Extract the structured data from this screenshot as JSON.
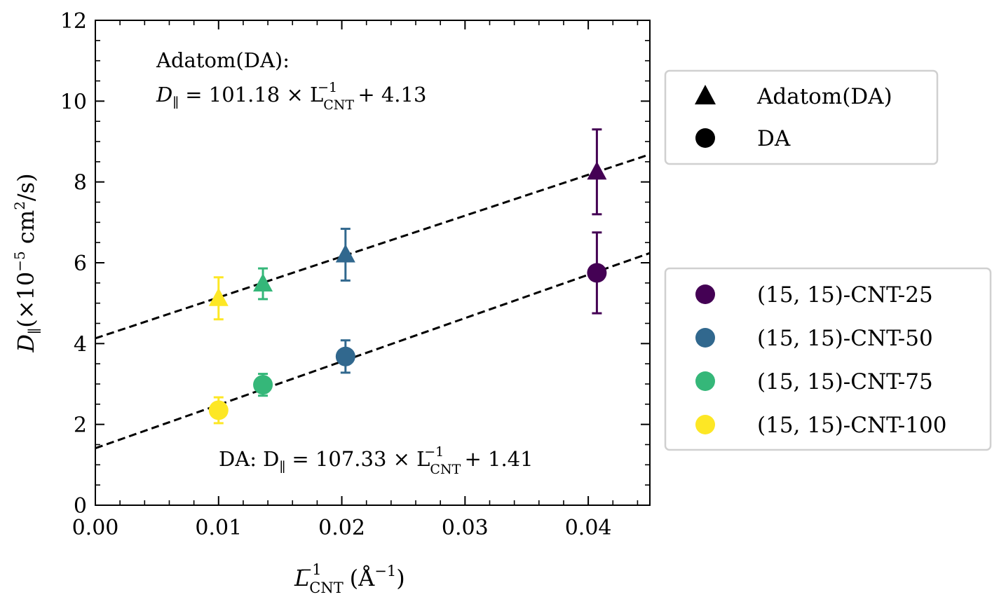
{
  "chart_data": {
    "type": "scatter",
    "title": "",
    "xlabel": {
      "base": "L",
      "sub": "CNT",
      "sup": "−1",
      "unit_open": "(Å",
      "unit_sup": "−1",
      "unit_close": ")"
    },
    "ylabel": {
      "base": "D",
      "sub": "∥",
      "rest": "(×10",
      "sup": "−5",
      "unit": " cm",
      "unit_sup": "2",
      "close": "/s)"
    },
    "xlim": [
      0.0,
      0.045
    ],
    "ylim": [
      0,
      12
    ],
    "xticks": [
      0.0,
      0.01,
      0.02,
      0.03,
      0.04
    ],
    "xtick_labels": [
      "0.00",
      "0.01",
      "0.02",
      "0.03",
      "0.04"
    ],
    "yticks": [
      0,
      2,
      4,
      6,
      8,
      10,
      12
    ],
    "ytick_labels": [
      "0",
      "2",
      "4",
      "6",
      "8",
      "10",
      "12"
    ],
    "grid": false,
    "colors": {
      "cnt25": "#440154",
      "cnt50": "#31688e",
      "cnt75": "#35b779",
      "cnt100": "#fde725",
      "fit": "#000000"
    },
    "series": [
      {
        "marker": "triangle",
        "group": "Adatom(DA)",
        "points": [
          {
            "x": 0.01,
            "y": 5.12,
            "err": 0.52,
            "color_key": "cnt100"
          },
          {
            "x": 0.0136,
            "y": 5.48,
            "err": 0.38,
            "color_key": "cnt75"
          },
          {
            "x": 0.0203,
            "y": 6.2,
            "err": 0.64,
            "color_key": "cnt50"
          },
          {
            "x": 0.0407,
            "y": 8.25,
            "err": 1.05,
            "color_key": "cnt25"
          }
        ]
      },
      {
        "marker": "circle",
        "group": "DA",
        "points": [
          {
            "x": 0.01,
            "y": 2.35,
            "err": 0.32,
            "color_key": "cnt100"
          },
          {
            "x": 0.0136,
            "y": 2.98,
            "err": 0.27,
            "color_key": "cnt75"
          },
          {
            "x": 0.0203,
            "y": 3.68,
            "err": 0.4,
            "color_key": "cnt50"
          },
          {
            "x": 0.0407,
            "y": 5.75,
            "err": 1.0,
            "color_key": "cnt25"
          }
        ]
      }
    ],
    "fits": [
      {
        "slope": 101.18,
        "intercept": 4.13
      },
      {
        "slope": 107.33,
        "intercept": 1.41
      }
    ],
    "annotations": {
      "adatom_line1": "Adatom(DA):",
      "adatom_eq": {
        "lhs": "D",
        "lhs_sub": "∥",
        "mid": " = 101.18 × L",
        "mid_sub": "CNT",
        "mid_sup": "−1",
        "tail": " + 4.13"
      },
      "da_eq": {
        "prefix": "DA: D",
        "lhs_sub": "∥",
        "mid": " = 107.33 × L",
        "mid_sub": "CNT",
        "mid_sup": "−1",
        "tail": " + 1.41"
      }
    },
    "legend_markers": {
      "placement": "right-upper",
      "items": [
        {
          "label": "Adatom(DA)",
          "marker": "triangle"
        },
        {
          "label": "DA",
          "marker": "circle"
        }
      ]
    },
    "legend_systems": {
      "placement": "right-lower",
      "items": [
        {
          "label": "(15, 15)-CNT-25",
          "color_key": "cnt25"
        },
        {
          "label": "(15, 15)-CNT-50",
          "color_key": "cnt50"
        },
        {
          "label": "(15, 15)-CNT-75",
          "color_key": "cnt75"
        },
        {
          "label": "(15, 15)-CNT-100",
          "color_key": "cnt100"
        }
      ]
    }
  }
}
